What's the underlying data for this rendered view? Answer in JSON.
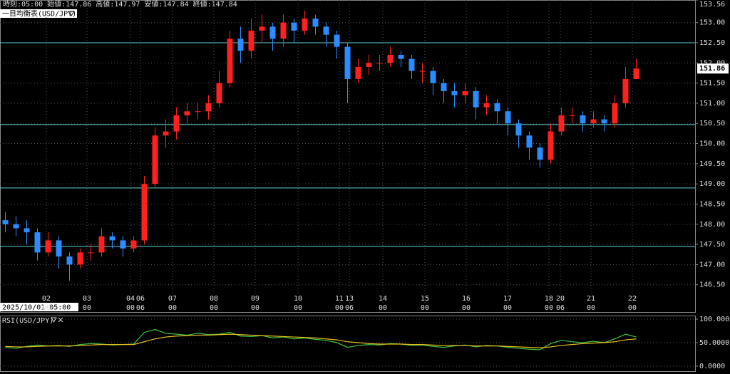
{
  "chart_data": [
    {
      "type": "candlestick",
      "title": "一目均衡表(USD/JPY)",
      "info": "時刻:05:00 始値:147.86 高値:147.97 安値:147.84 終値:147.84",
      "start_label": "2025/10/01 05:00",
      "up_color": "#ff2020",
      "down_color": "#2a8cff",
      "grid": true,
      "xlim": [
        0,
        65
      ],
      "ylim": [
        146.0,
        153.56
      ],
      "yticks": [
        {
          "value": 153.56,
          "label": "153.56"
        },
        {
          "value": 153.0,
          "label": "153.00"
        },
        {
          "value": 152.5,
          "label": "152.50"
        },
        {
          "value": 152.0,
          "label": "152.00"
        },
        {
          "value": 151.5,
          "label": "151.50"
        },
        {
          "value": 151.0,
          "label": "151.00"
        },
        {
          "value": 150.5,
          "label": "150.50"
        },
        {
          "value": 150.0,
          "label": "150.00"
        },
        {
          "value": 149.5,
          "label": "149.50"
        },
        {
          "value": 149.0,
          "label": "149.00"
        },
        {
          "value": 148.5,
          "label": "148.50"
        },
        {
          "value": 148.0,
          "label": "148.00"
        },
        {
          "value": 147.5,
          "label": "147.50"
        },
        {
          "value": 147.0,
          "label": "147.00"
        },
        {
          "value": 146.5,
          "label": "146.50"
        }
      ],
      "xticks": [
        {
          "value": 4.33,
          "label": "02",
          "hour": "00"
        },
        {
          "value": 8.13,
          "label": "03",
          "hour": "00"
        },
        {
          "value": 12.2,
          "label": "04",
          "hour": "00"
        },
        {
          "value": 13.13,
          "label": "06",
          "hour": "06"
        },
        {
          "value": 16.13,
          "label": "07",
          "hour": "00"
        },
        {
          "value": 20,
          "label": "08",
          "hour": "00"
        },
        {
          "value": 23.87,
          "label": "09",
          "hour": "00"
        },
        {
          "value": 27.87,
          "label": "10",
          "hour": "00"
        },
        {
          "value": 31.73,
          "label": "11",
          "hour": "00"
        },
        {
          "value": 32.67,
          "label": "13",
          "hour": "06"
        },
        {
          "value": 35.8,
          "label": "14",
          "hour": "00"
        },
        {
          "value": 39.73,
          "label": "15",
          "hour": "00"
        },
        {
          "value": 43.6,
          "label": "16",
          "hour": "00"
        },
        {
          "value": 47.47,
          "label": "17",
          "hour": "00"
        },
        {
          "value": 51.33,
          "label": "18",
          "hour": "00"
        },
        {
          "value": 52.4,
          "label": "20",
          "hour": "06"
        },
        {
          "value": 55.27,
          "label": "21",
          "hour": "00"
        },
        {
          "value": 59.13,
          "label": "22",
          "hour": "00"
        }
      ],
      "levels": [
        152.5,
        150.47,
        148.9,
        147.45
      ],
      "level_color": "#5fd3d3",
      "open": [
        148.1,
        148.0,
        147.9,
        147.8,
        147.3,
        147.6,
        147.2,
        147.0,
        147.3,
        147.3,
        147.7,
        147.6,
        147.4,
        147.6,
        149.0,
        150.2,
        150.3,
        150.7,
        150.8,
        150.8,
        151.0,
        151.5,
        152.6,
        152.3,
        152.8,
        152.9,
        152.6,
        153.0,
        152.8,
        153.1,
        152.9,
        152.7,
        152.4,
        151.6,
        151.9,
        152.0,
        152.0,
        152.2,
        152.1,
        151.8,
        151.8,
        151.5,
        151.3,
        151.2,
        151.3,
        150.9,
        151.0,
        150.8,
        150.5,
        150.2,
        149.9,
        149.6,
        150.3,
        150.7,
        150.7,
        150.5,
        150.6,
        150.5,
        151.0,
        151.6
      ],
      "high": [
        148.3,
        148.2,
        148.1,
        147.9,
        147.8,
        147.7,
        147.3,
        147.4,
        147.5,
        147.9,
        147.8,
        147.7,
        147.7,
        149.2,
        150.4,
        150.6,
        150.9,
        151.0,
        151.0,
        151.2,
        151.8,
        152.8,
        152.9,
        153.1,
        153.2,
        153.0,
        153.2,
        153.1,
        153.3,
        153.2,
        153.0,
        152.8,
        152.5,
        152.1,
        152.2,
        152.2,
        152.4,
        152.3,
        152.2,
        152.0,
        151.9,
        151.6,
        151.5,
        151.5,
        151.4,
        151.2,
        151.1,
        150.9,
        150.6,
        150.3,
        150.0,
        150.5,
        150.9,
        150.9,
        150.8,
        150.8,
        150.7,
        151.2,
        151.9,
        152.1
      ],
      "low": [
        147.8,
        147.7,
        147.5,
        147.1,
        147.2,
        146.9,
        146.6,
        146.9,
        147.1,
        147.2,
        147.4,
        147.2,
        147.3,
        147.5,
        148.9,
        149.9,
        150.1,
        150.5,
        150.6,
        150.6,
        150.9,
        151.4,
        152.0,
        152.1,
        152.5,
        152.3,
        152.4,
        152.5,
        152.7,
        152.7,
        152.4,
        152.1,
        151.0,
        151.5,
        151.7,
        151.8,
        151.9,
        151.9,
        151.6,
        151.5,
        151.2,
        151.0,
        150.9,
        151.0,
        150.6,
        150.7,
        150.5,
        150.2,
        149.9,
        149.6,
        149.4,
        149.5,
        150.2,
        150.5,
        150.3,
        150.4,
        150.3,
        150.4,
        150.9,
        151.6
      ],
      "close": [
        148.0,
        147.9,
        147.8,
        147.3,
        147.6,
        147.2,
        147.0,
        147.3,
        147.3,
        147.7,
        147.6,
        147.4,
        147.6,
        149.0,
        150.2,
        150.3,
        150.7,
        150.8,
        150.8,
        151.0,
        151.5,
        152.6,
        152.3,
        152.8,
        152.9,
        152.6,
        153.0,
        152.8,
        153.1,
        152.9,
        152.7,
        152.4,
        151.6,
        151.9,
        152.0,
        152.0,
        152.2,
        152.1,
        151.8,
        151.8,
        151.5,
        151.3,
        151.2,
        151.3,
        150.9,
        151.0,
        150.8,
        150.5,
        150.2,
        149.9,
        149.6,
        150.3,
        150.7,
        150.7,
        150.5,
        150.6,
        150.5,
        151.0,
        151.6,
        151.86
      ]
    },
    {
      "type": "line",
      "title": "RSI(USD/JPY)",
      "grid": true,
      "xlim": [
        0,
        65
      ],
      "ylim": [
        0,
        100
      ],
      "yticks": [
        {
          "value": 100,
          "label": "100.0000"
        },
        {
          "value": 50,
          "label": "50.0000"
        },
        {
          "value": 0,
          "label": "0.0000"
        }
      ],
      "series": [
        {
          "color": "#3ec43e",
          "values": [
            40,
            38,
            42,
            45,
            43,
            44,
            42,
            46,
            48,
            47,
            45,
            46,
            47,
            72,
            78,
            70,
            68,
            66,
            70,
            67,
            68,
            72,
            64,
            63,
            65,
            60,
            62,
            58,
            60,
            57,
            55,
            50,
            40,
            44,
            46,
            45,
            48,
            47,
            44,
            45,
            42,
            40,
            43,
            45,
            41,
            44,
            43,
            40,
            38,
            36,
            35,
            48,
            55,
            52,
            50,
            53,
            50,
            58,
            68,
            62
          ]
        },
        {
          "color": "#e8c020",
          "values": [
            42,
            41,
            41,
            42,
            43,
            43,
            43,
            44,
            45,
            46,
            46,
            46,
            46,
            52,
            58,
            62,
            64,
            65,
            66,
            66,
            67,
            68,
            67,
            66,
            65,
            64,
            63,
            62,
            61,
            60,
            58,
            56,
            52,
            50,
            48,
            47,
            47,
            47,
            46,
            46,
            45,
            44,
            44,
            44,
            43,
            43,
            43,
            42,
            41,
            40,
            39,
            41,
            44,
            46,
            48,
            49,
            50,
            52,
            56,
            58
          ]
        }
      ]
    }
  ]
}
